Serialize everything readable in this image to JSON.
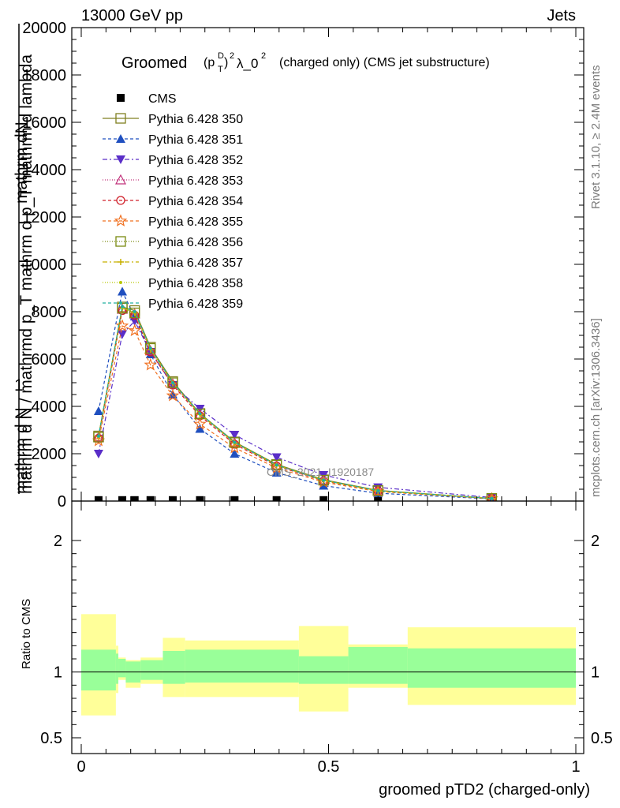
{
  "header": {
    "left": "13000 GeV pp",
    "right": "Jets"
  },
  "side_labels": {
    "rivet": "Rivet 3.1.10, ≥ 2.4M events",
    "mcplots": "mcplots.cern.ch [arXiv:1306.3436]"
  },
  "chart_data": [
    {
      "type": "line",
      "panel": "main",
      "title_prefix": "Groomed",
      "title_math": "(p_T^D)^2 λ_0^2",
      "title_suffix": "(charged only) (CMS jet substructure)",
      "ylabel_top": "1",
      "ylabel_lines": [
        "mathrm d N / mathrmd p_T mathrm d p_T mathrm d lambda",
        "mathrm dN",
        "mathrm d N"
      ],
      "watermark": "CMS_2021_I1920187",
      "xlim": [
        0,
        1
      ],
      "ylim": [
        0,
        20000
      ],
      "y_ticks": [
        0,
        2000,
        4000,
        6000,
        8000,
        10000,
        12000,
        14000,
        16000,
        18000,
        20000
      ],
      "y_tick_labels": [
        "0",
        "2000",
        "4000",
        "6000",
        "8000",
        "10000",
        "12000",
        "14000",
        "16000",
        "18000",
        "20000"
      ],
      "x": [
        0.035,
        0.083,
        0.108,
        0.14,
        0.185,
        0.24,
        0.31,
        0.395,
        0.49,
        0.6,
        0.83
      ],
      "series": [
        {
          "name": "CMS",
          "color": "#000000",
          "marker": "square-filled",
          "dash": "none",
          "values": [
            40,
            40,
            40,
            40,
            40,
            40,
            40,
            40,
            40,
            40,
            40
          ]
        },
        {
          "name": "Pythia 6.428 350",
          "color": "#808020",
          "marker": "square-open",
          "dash": "solid",
          "values": [
            2750,
            8200,
            8050,
            6500,
            5050,
            3700,
            2500,
            1550,
            900,
            450,
            110
          ]
        },
        {
          "name": "Pythia 6.428 351",
          "color": "#1f4fbf",
          "marker": "triangle-up-filled",
          "dash": "4,3",
          "values": [
            3800,
            8850,
            7800,
            6200,
            4500,
            3050,
            2000,
            1200,
            650,
            330,
            90
          ]
        },
        {
          "name": "Pythia 6.428 352",
          "color": "#5a2ec8",
          "marker": "triangle-down-filled",
          "dash": "6,3,2,3",
          "values": [
            2000,
            7050,
            7600,
            6300,
            4900,
            3900,
            2800,
            1850,
            1100,
            580,
            150
          ]
        },
        {
          "name": "Pythia 6.428 353",
          "color": "#c0307a",
          "marker": "triangle-up-open",
          "dash": "1,2",
          "values": [
            2700,
            8100,
            7900,
            6350,
            4950,
            3650,
            2450,
            1500,
            870,
            440,
            110
          ]
        },
        {
          "name": "Pythia 6.428 354",
          "color": "#d0202a",
          "marker": "circle-open",
          "dash": "4,3",
          "values": [
            2650,
            8050,
            7850,
            6300,
            4900,
            3600,
            2400,
            1480,
            850,
            430,
            105
          ]
        },
        {
          "name": "Pythia 6.428 355",
          "color": "#f07020",
          "marker": "star",
          "dash": "4,3",
          "values": [
            2550,
            7400,
            7200,
            5750,
            4450,
            3250,
            2250,
            1400,
            800,
            400,
            100
          ]
        },
        {
          "name": "Pythia 6.428 356",
          "color": "#7a8a10",
          "marker": "square-open",
          "dash": "1,2",
          "values": [
            2700,
            8150,
            7950,
            6450,
            5000,
            3680,
            2470,
            1520,
            880,
            440,
            110
          ]
        },
        {
          "name": "Pythia 6.428 357",
          "color": "#c8b000",
          "marker": "plus",
          "dash": "6,3,2,3",
          "values": [
            2720,
            8150,
            7950,
            6400,
            4980,
            3660,
            2460,
            1510,
            870,
            435,
            108
          ]
        },
        {
          "name": "Pythia 6.428 358",
          "color": "#b8c800",
          "marker": "dot",
          "dash": "1,2",
          "values": [
            2730,
            8180,
            7980,
            6420,
            4990,
            3670,
            2470,
            1515,
            875,
            438,
            109
          ]
        },
        {
          "name": "Pythia 6.428 359",
          "color": "#20b0a0",
          "marker": "dot",
          "dash": "4,3",
          "values": [
            2740,
            8220,
            8000,
            6450,
            5000,
            3690,
            2480,
            1520,
            880,
            440,
            110
          ]
        }
      ]
    },
    {
      "type": "area",
      "panel": "ratio",
      "ylabel": "Ratio to CMS",
      "xlabel": "groomed pTD2 (charged-only)",
      "xlim": [
        0,
        1
      ],
      "x_ticks": [
        0,
        0.5,
        1
      ],
      "x_tick_labels": [
        "0",
        "0.5",
        "1"
      ],
      "ylim": [
        0.38,
        2.3
      ],
      "y_ticks": [
        0.5,
        1,
        2
      ],
      "y_tick_labels": [
        "0.5",
        "1",
        "2"
      ],
      "reference_line": 1,
      "bins": [
        0,
        0.07,
        0.075,
        0.09,
        0.12,
        0.165,
        0.21,
        0.44,
        0.54,
        0.66,
        1.0
      ],
      "bins_note": "bin edges",
      "edges": [
        0.0,
        0.07,
        0.075,
        0.09,
        0.12,
        0.165,
        0.21,
        0.44,
        0.54,
        0.66,
        1.0
      ],
      "stat_band": {
        "color": "#99ff99",
        "low": [
          0.86,
          0.91,
          0.96,
          0.92,
          0.94,
          0.91,
          0.92,
          0.91,
          0.91,
          0.88
        ],
        "high": [
          1.17,
          1.14,
          1.1,
          1.08,
          1.09,
          1.16,
          1.17,
          1.12,
          1.19,
          1.18
        ]
      },
      "syst_band": {
        "color": "#ffff99",
        "low": [
          0.67,
          0.84,
          0.94,
          0.88,
          0.91,
          0.81,
          0.81,
          0.7,
          0.88,
          0.75
        ],
        "high": [
          1.44,
          1.2,
          1.11,
          1.09,
          1.11,
          1.26,
          1.24,
          1.35,
          1.21,
          1.34
        ]
      }
    }
  ]
}
